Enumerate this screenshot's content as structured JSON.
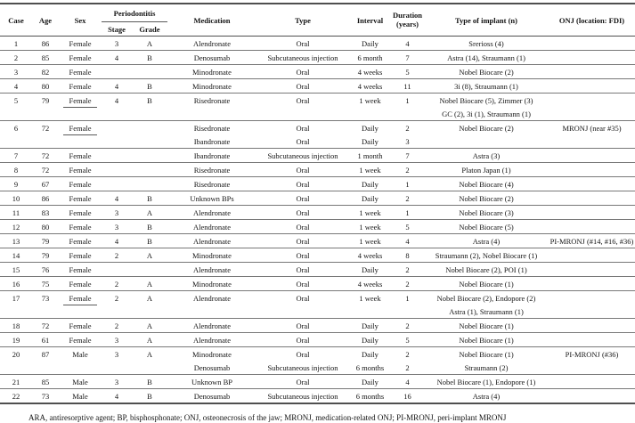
{
  "table": {
    "header": {
      "case": "Case",
      "age": "Age",
      "sex": "Sex",
      "periodontitis": "Periodontitis",
      "stage": "Stage",
      "grade": "Grade",
      "medication": "Medication",
      "type": "Type",
      "interval": "Interval",
      "duration_line1": "Duration",
      "duration_line2": "(years)",
      "implant": "Type of implant (n)",
      "onj": "ONJ (location: FDI)"
    },
    "rows": [
      {
        "case": "1",
        "age": "86",
        "sex": "Female",
        "sex_underlined": false,
        "stage": "3",
        "grade": "A",
        "lines": [
          {
            "medication": "Alendronate",
            "type": "Oral",
            "interval": "Daily",
            "duration": "4",
            "implant": "Srerioss (4)",
            "onj": ""
          }
        ]
      },
      {
        "case": "2",
        "age": "85",
        "sex": "Female",
        "sex_underlined": false,
        "stage": "4",
        "grade": "B",
        "lines": [
          {
            "medication": "Denosumab",
            "type": "Subcutaneous injection",
            "interval": "6 month",
            "duration": "7",
            "implant": "Astra (14), Straumann (1)",
            "onj": ""
          }
        ]
      },
      {
        "case": "3",
        "age": "82",
        "sex": "Female",
        "sex_underlined": false,
        "stage": "",
        "grade": "",
        "lines": [
          {
            "medication": "Minodronate",
            "type": "Oral",
            "interval": "4 weeks",
            "duration": "5",
            "implant": "Nobel Biocare (2)",
            "onj": ""
          }
        ]
      },
      {
        "case": "4",
        "age": "80",
        "sex": "Female",
        "sex_underlined": false,
        "stage": "4",
        "grade": "B",
        "lines": [
          {
            "medication": "Minodronate",
            "type": "Oral",
            "interval": "4 weeks",
            "duration": "11",
            "implant": "3i (8), Straumann (1)",
            "onj": ""
          }
        ]
      },
      {
        "case": "5",
        "age": "79",
        "sex": "Female",
        "sex_underlined": true,
        "stage": "4",
        "grade": "B",
        "lines": [
          {
            "medication": "Risedronate",
            "type": "Oral",
            "interval": "1 week",
            "duration": "1",
            "implant": "Nobel Biocare (5), Zimmer (3)",
            "onj": ""
          },
          {
            "medication": "",
            "type": "",
            "interval": "",
            "duration": "",
            "implant": "GC (2), 3i (1), Straumann (1)",
            "onj": ""
          }
        ]
      },
      {
        "case": "6",
        "age": "72",
        "sex": "Female",
        "sex_underlined": true,
        "stage": "",
        "grade": "",
        "lines": [
          {
            "medication": "Risedronate",
            "type": "Oral",
            "interval": "Daily",
            "duration": "2",
            "implant": "Nobel Biocare (2)",
            "onj": "MRONJ (near #35)"
          },
          {
            "medication": "Ibandronate",
            "type": "Oral",
            "interval": "Daily",
            "duration": "3",
            "implant": "",
            "onj": ""
          }
        ]
      },
      {
        "case": "7",
        "age": "72",
        "sex": "Female",
        "sex_underlined": false,
        "stage": "",
        "grade": "",
        "lines": [
          {
            "medication": "Ibandronate",
            "type": "Subcutaneous injection",
            "interval": "1 month",
            "duration": "7",
            "implant": "Astra (3)",
            "onj": ""
          }
        ]
      },
      {
        "case": "8",
        "age": "72",
        "sex": "Female",
        "sex_underlined": false,
        "stage": "",
        "grade": "",
        "lines": [
          {
            "medication": "Risedronate",
            "type": "Oral",
            "interval": "1 week",
            "duration": "2",
            "implant": "Platon Japan (1)",
            "onj": ""
          }
        ]
      },
      {
        "case": "9",
        "age": "67",
        "sex": "Female",
        "sex_underlined": false,
        "stage": "",
        "grade": "",
        "lines": [
          {
            "medication": "Risedronate",
            "type": "Oral",
            "interval": "Daily",
            "duration": "1",
            "implant": "Nobel Biocare (4)",
            "onj": ""
          }
        ]
      },
      {
        "case": "10",
        "age": "86",
        "sex": "Female",
        "sex_underlined": false,
        "stage": "4",
        "grade": "B",
        "lines": [
          {
            "medication": "Unknown BPs",
            "type": "Oral",
            "interval": "Daily",
            "duration": "2",
            "implant": "Nobel Biocare (2)",
            "onj": ""
          }
        ]
      },
      {
        "case": "11",
        "age": "83",
        "sex": "Female",
        "sex_underlined": false,
        "stage": "3",
        "grade": "A",
        "lines": [
          {
            "medication": "Alendronate",
            "type": "Oral",
            "interval": "1 week",
            "duration": "1",
            "implant": "Nobel Biocare (3)",
            "onj": ""
          }
        ]
      },
      {
        "case": "12",
        "age": "80",
        "sex": "Female",
        "sex_underlined": false,
        "stage": "3",
        "grade": "B",
        "lines": [
          {
            "medication": "Alendronate",
            "type": "Oral",
            "interval": "1 week",
            "duration": "5",
            "implant": "Nobel Biocare (5)",
            "onj": ""
          }
        ]
      },
      {
        "case": "13",
        "age": "79",
        "sex": "Female",
        "sex_underlined": false,
        "stage": "4",
        "grade": "B",
        "lines": [
          {
            "medication": "Alendronate",
            "type": "Oral",
            "interval": "1 week",
            "duration": "4",
            "implant": "Astra (4)",
            "onj": "PI-MRONJ (#14, #16, #36)"
          }
        ]
      },
      {
        "case": "14",
        "age": "79",
        "sex": "Female",
        "sex_underlined": false,
        "stage": "2",
        "grade": "A",
        "lines": [
          {
            "medication": "Minodronate",
            "type": "Oral",
            "interval": "4 weeks",
            "duration": "8",
            "implant": "Straumann (2), Nobel Biocare (1)",
            "onj": ""
          }
        ]
      },
      {
        "case": "15",
        "age": "76",
        "sex": "Female",
        "sex_underlined": false,
        "stage": "",
        "grade": "",
        "lines": [
          {
            "medication": "Alendronate",
            "type": "Oral",
            "interval": "Daily",
            "duration": "2",
            "implant": "Nobel Biocare (2), POI (1)",
            "onj": ""
          }
        ]
      },
      {
        "case": "16",
        "age": "75",
        "sex": "Female",
        "sex_underlined": false,
        "stage": "2",
        "grade": "A",
        "lines": [
          {
            "medication": "Minodronate",
            "type": "Oral",
            "interval": "4 weeks",
            "duration": "2",
            "implant": "Nobel Biocare (1)",
            "onj": ""
          }
        ]
      },
      {
        "case": "17",
        "age": "73",
        "sex": "Female",
        "sex_underlined": true,
        "stage": "2",
        "grade": "A",
        "lines": [
          {
            "medication": "Alendronate",
            "type": "Oral",
            "interval": "1 week",
            "duration": "1",
            "implant": "Nobel Biocare (2), Endopore (2)",
            "onj": ""
          },
          {
            "medication": "",
            "type": "",
            "interval": "",
            "duration": "",
            "implant": "Astra (1), Straumann (1)",
            "onj": ""
          }
        ]
      },
      {
        "case": "18",
        "age": "72",
        "sex": "Female",
        "sex_underlined": false,
        "stage": "2",
        "grade": "A",
        "lines": [
          {
            "medication": "Alendronate",
            "type": "Oral",
            "interval": "Daily",
            "duration": "2",
            "implant": "Nobel Biocare (1)",
            "onj": ""
          }
        ]
      },
      {
        "case": "19",
        "age": "61",
        "sex": "Female",
        "sex_underlined": false,
        "stage": "3",
        "grade": "A",
        "lines": [
          {
            "medication": "Alendronate",
            "type": "Oral",
            "interval": "Daily",
            "duration": "5",
            "implant": "Nobel Biocare (1)",
            "onj": ""
          }
        ]
      },
      {
        "case": "20",
        "age": "87",
        "sex": "Male",
        "sex_underlined": false,
        "stage": "3",
        "grade": "A",
        "lines": [
          {
            "medication": "Minodronate",
            "type": "Oral",
            "interval": "Daily",
            "duration": "2",
            "implant": "Nobel Biocare (1)",
            "onj": "PI-MRONJ (#36)"
          },
          {
            "medication": "Denosumab",
            "type": "Subcutaneous injection",
            "interval": "6 months",
            "duration": "2",
            "implant": "Straumann (2)",
            "onj": ""
          }
        ]
      },
      {
        "case": "21",
        "age": "85",
        "sex": "Male",
        "sex_underlined": false,
        "stage": "3",
        "grade": "B",
        "lines": [
          {
            "medication": "Unknown BP",
            "type": "Oral",
            "interval": "Daily",
            "duration": "4",
            "implant": "Nobel Biocare (1), Endopore (1)",
            "onj": ""
          }
        ]
      },
      {
        "case": "22",
        "age": "73",
        "sex": "Male",
        "sex_underlined": false,
        "stage": "4",
        "grade": "B",
        "lines": [
          {
            "medication": "Denosumab",
            "type": "Subcutaneous injection",
            "interval": "6 months",
            "duration": "16",
            "implant": "Astra (4)",
            "onj": ""
          }
        ]
      }
    ],
    "footnote": "ARA, antiresorptive agent; BP, bisphosphonate; ONJ, osteonecrosis of the jaw; MRONJ, medication-related ONJ; PI-MRONJ, peri-implant MRONJ"
  }
}
